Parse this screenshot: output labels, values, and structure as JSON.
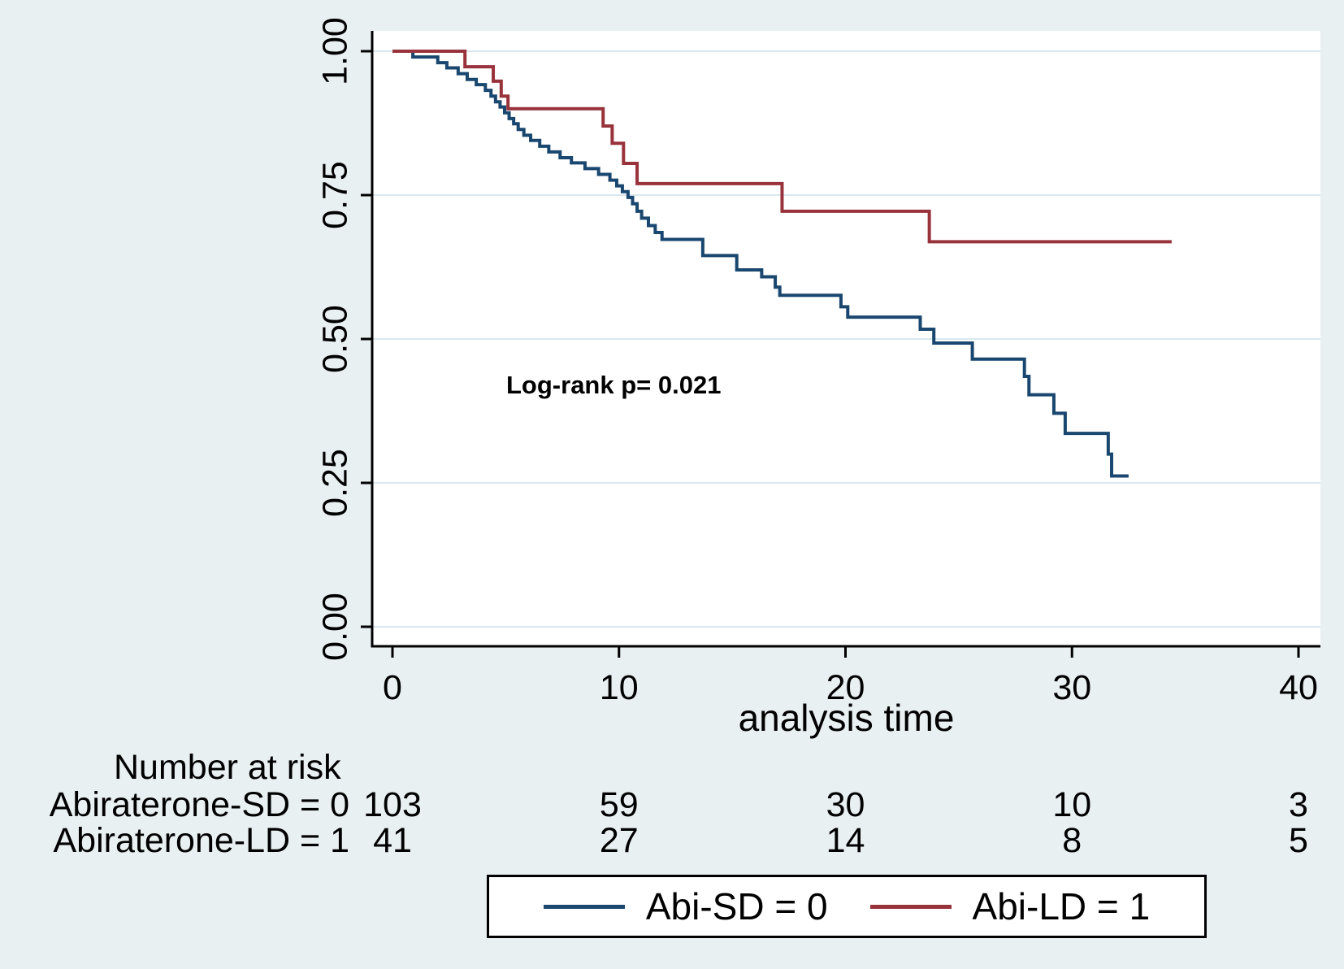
{
  "chart_data": {
    "type": "line",
    "subtype": "kaplan-meier-step",
    "title": "",
    "xlabel": "analysis time",
    "ylabel": "",
    "annotation": "Log-rank p= 0.021",
    "xlim": [
      0,
      40
    ],
    "ylim": [
      0.0,
      1.0
    ],
    "grid": "horizontal",
    "legend_position": "bottom",
    "x_ticks": [
      {
        "t": 0,
        "label": "0"
      },
      {
        "t": 10,
        "label": "10"
      },
      {
        "t": 20,
        "label": "20"
      },
      {
        "t": 30,
        "label": "30"
      },
      {
        "t": 40,
        "label": "40"
      }
    ],
    "y_ticks": [
      {
        "v": 0.0,
        "label": "0.00"
      },
      {
        "v": 0.25,
        "label": "0.25"
      },
      {
        "v": 0.5,
        "label": "0.50"
      },
      {
        "v": 0.75,
        "label": "0.75"
      },
      {
        "v": 1.0,
        "label": "1.00"
      }
    ],
    "series": [
      {
        "name": "Abi-SD = 0",
        "color": "#1a476f",
        "end_time": 32.5,
        "points": [
          [
            0,
            1.0
          ],
          [
            0.9,
            0.99
          ],
          [
            2.0,
            0.98
          ],
          [
            2.4,
            0.971
          ],
          [
            2.9,
            0.961
          ],
          [
            3.3,
            0.951
          ],
          [
            3.7,
            0.942
          ],
          [
            4.1,
            0.932
          ],
          [
            4.35,
            0.922
          ],
          [
            4.55,
            0.912
          ],
          [
            4.75,
            0.903
          ],
          [
            4.95,
            0.893
          ],
          [
            5.15,
            0.883
          ],
          [
            5.35,
            0.874
          ],
          [
            5.55,
            0.864
          ],
          [
            5.8,
            0.854
          ],
          [
            6.1,
            0.845
          ],
          [
            6.5,
            0.835
          ],
          [
            6.9,
            0.825
          ],
          [
            7.4,
            0.815
          ],
          [
            7.9,
            0.806
          ],
          [
            8.5,
            0.796
          ],
          [
            9.1,
            0.786
          ],
          [
            9.6,
            0.776
          ],
          [
            9.9,
            0.766
          ],
          [
            10.15,
            0.756
          ],
          [
            10.4,
            0.746
          ],
          [
            10.6,
            0.735
          ],
          [
            10.8,
            0.722
          ],
          [
            11.0,
            0.71
          ],
          [
            11.3,
            0.697
          ],
          [
            11.6,
            0.685
          ],
          [
            11.9,
            0.673
          ],
          [
            13.7,
            0.645
          ],
          [
            15.2,
            0.62
          ],
          [
            16.3,
            0.608
          ],
          [
            16.9,
            0.59
          ],
          [
            17.1,
            0.576
          ],
          [
            19.8,
            0.556
          ],
          [
            20.1,
            0.538
          ],
          [
            23.3,
            0.517
          ],
          [
            23.9,
            0.493
          ],
          [
            25.6,
            0.465
          ],
          [
            27.9,
            0.435
          ],
          [
            28.1,
            0.403
          ],
          [
            29.2,
            0.371
          ],
          [
            29.7,
            0.336
          ],
          [
            31.6,
            0.3
          ],
          [
            31.75,
            0.262
          ]
        ]
      },
      {
        "name": "Abi-LD = 1",
        "color": "#99333b",
        "end_time": 34.4,
        "points": [
          [
            0,
            1.0
          ],
          [
            3.2,
            0.973
          ],
          [
            4.45,
            0.948
          ],
          [
            4.8,
            0.922
          ],
          [
            5.1,
            0.9
          ],
          [
            9.3,
            0.87
          ],
          [
            9.7,
            0.84
          ],
          [
            10.2,
            0.805
          ],
          [
            10.8,
            0.77
          ],
          [
            17.2,
            0.722
          ],
          [
            23.7,
            0.669
          ]
        ]
      }
    ],
    "at_risk": {
      "title": "Number at risk",
      "times": [
        0,
        10,
        20,
        30,
        40
      ],
      "rows": [
        {
          "label": "Abiraterone-SD = 0",
          "counts": [
            "103",
            "59",
            "30",
            "10",
            "3"
          ]
        },
        {
          "label": "Abiraterone-LD = 1",
          "counts": [
            "41",
            "27",
            "14",
            "8",
            "5"
          ]
        }
      ]
    }
  }
}
